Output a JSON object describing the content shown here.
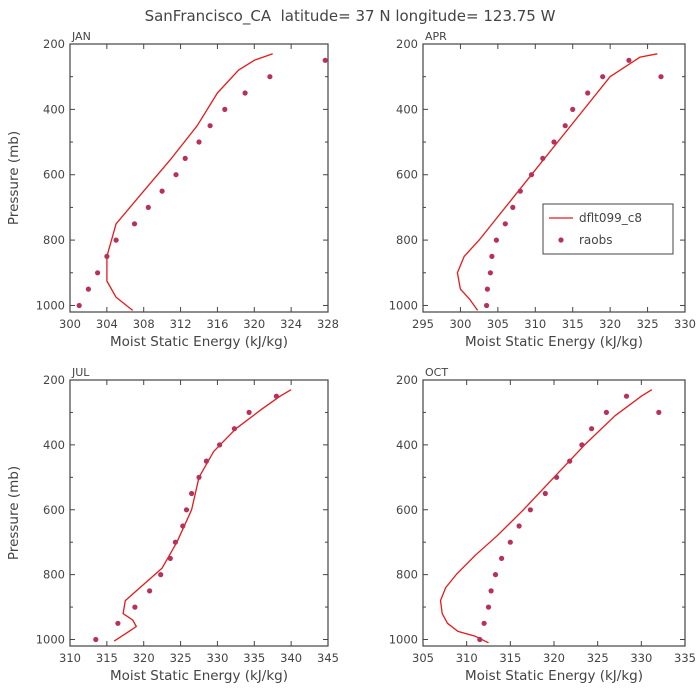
{
  "figure": {
    "title": "SanFrancisco_CA  latitude= 37 N longitude= 123.75 W"
  },
  "colors": {
    "model": "#e8191a",
    "obs": "#b8315a",
    "axis": "#444444"
  },
  "legend": {
    "entries": [
      "dflt099_c8",
      "raobs"
    ],
    "placement": "right-middle in APR panel"
  },
  "chart_data": [
    {
      "type": "line",
      "panel": "JAN",
      "xlabel": "Moist Static Energy (kJ/kg)",
      "ylabel": "Pressure (mb)",
      "xlim": [
        300,
        328
      ],
      "ylim": [
        1020,
        200
      ],
      "xticks": [
        300,
        304,
        308,
        312,
        316,
        320,
        324,
        328
      ],
      "yticks": [
        200,
        400,
        600,
        800,
        1000
      ],
      "series": [
        {
          "name": "dflt099_c8",
          "kind": "line",
          "x": [
            306.8,
            305.0,
            304.0,
            304.0,
            305.0,
            308.0,
            311.0,
            313.8,
            316.0,
            318.3,
            320.0,
            322.0
          ],
          "y": [
            1015,
            975,
            925,
            850,
            750,
            650,
            550,
            450,
            350,
            280,
            250,
            230
          ]
        },
        {
          "name": "raobs",
          "kind": "scatter",
          "x": [
            301.0,
            302.0,
            303.0,
            304.0,
            305.0,
            307.0,
            308.5,
            310.0,
            311.5,
            312.5,
            314.0,
            315.2,
            316.8,
            319.0,
            321.7,
            327.7
          ],
          "y": [
            1000,
            950,
            900,
            850,
            800,
            750,
            700,
            650,
            600,
            550,
            500,
            450,
            400,
            350,
            300,
            250
          ]
        }
      ]
    },
    {
      "type": "line",
      "panel": "APR",
      "xlabel": "Moist Static Energy (kJ/kg)",
      "ylabel": "",
      "xlim": [
        295,
        330
      ],
      "ylim": [
        1020,
        200
      ],
      "xticks": [
        295,
        300,
        305,
        310,
        315,
        320,
        325,
        330
      ],
      "yticks": [
        200,
        400,
        600,
        800,
        1000
      ],
      "series": [
        {
          "name": "dflt099_c8",
          "kind": "line",
          "x": [
            302.3,
            301.2,
            300.0,
            299.6,
            300.5,
            302.5,
            306.0,
            309.5,
            313.0,
            316.5,
            320.0,
            324.0,
            326.3
          ],
          "y": [
            1015,
            980,
            950,
            900,
            850,
            800,
            700,
            600,
            500,
            400,
            300,
            240,
            230
          ]
        },
        {
          "name": "raobs",
          "kind": "scatter",
          "x": [
            303.5,
            303.6,
            304.0,
            304.2,
            304.8,
            306.0,
            307.0,
            308.0,
            309.5,
            311.0,
            312.5,
            314.0,
            315.0,
            317.0,
            319.0,
            322.5,
            326.8
          ],
          "y": [
            1000,
            950,
            900,
            850,
            800,
            750,
            700,
            650,
            600,
            550,
            500,
            450,
            400,
            350,
            300,
            250,
            300
          ]
        }
      ]
    },
    {
      "type": "line",
      "panel": "JUL",
      "xlabel": "Moist Static Energy (kJ/kg)",
      "ylabel": "Pressure (mb)",
      "xlim": [
        310,
        345
      ],
      "ylim": [
        1020,
        200
      ],
      "xticks": [
        310,
        315,
        320,
        325,
        330,
        335,
        340,
        345
      ],
      "yticks": [
        200,
        400,
        600,
        800,
        1000
      ],
      "series": [
        {
          "name": "dflt099_c8",
          "kind": "line",
          "x": [
            316.0,
            318.0,
            319.0,
            318.5,
            317.2,
            317.5,
            319.5,
            322.5,
            324.5,
            326.5,
            327.5,
            329.5,
            332.5,
            336.0,
            338.5,
            340.0
          ],
          "y": [
            1005,
            975,
            960,
            940,
            920,
            880,
            840,
            780,
            700,
            600,
            500,
            420,
            350,
            290,
            250,
            230
          ]
        },
        {
          "name": "raobs",
          "kind": "scatter",
          "x": [
            313.5,
            316.5,
            318.8,
            320.8,
            322.3,
            323.6,
            324.3,
            325.3,
            325.8,
            326.5,
            327.5,
            328.5,
            330.3,
            332.3,
            334.3,
            338.0
          ],
          "y": [
            1000,
            950,
            900,
            850,
            800,
            750,
            700,
            650,
            600,
            550,
            500,
            450,
            400,
            350,
            300,
            250
          ]
        }
      ]
    },
    {
      "type": "line",
      "panel": "OCT",
      "xlabel": "Moist Static Energy (kJ/kg)",
      "ylabel": "",
      "xlim": [
        305,
        335
      ],
      "ylim": [
        1020,
        200
      ],
      "xticks": [
        305,
        310,
        315,
        320,
        325,
        330,
        335
      ],
      "yticks": [
        200,
        400,
        600,
        800,
        1000
      ],
      "series": [
        {
          "name": "dflt099_c8",
          "kind": "line",
          "x": [
            312.5,
            311.0,
            309.0,
            307.8,
            307.2,
            307.0,
            307.6,
            308.8,
            311.0,
            313.5,
            316.5,
            320.0,
            323.5,
            327.0,
            330.0,
            331.2
          ],
          "y": [
            1010,
            990,
            975,
            950,
            920,
            880,
            840,
            800,
            740,
            680,
            600,
            500,
            400,
            310,
            250,
            230
          ]
        },
        {
          "name": "raobs",
          "kind": "scatter",
          "x": [
            311.5,
            312.0,
            312.5,
            312.8,
            313.3,
            314.0,
            315.0,
            316.0,
            317.3,
            319.0,
            320.3,
            321.8,
            323.2,
            324.3,
            326.0,
            328.3,
            332.0
          ],
          "y": [
            1000,
            950,
            900,
            850,
            800,
            750,
            700,
            650,
            600,
            550,
            500,
            450,
            400,
            350,
            300,
            250,
            300
          ]
        }
      ]
    }
  ]
}
